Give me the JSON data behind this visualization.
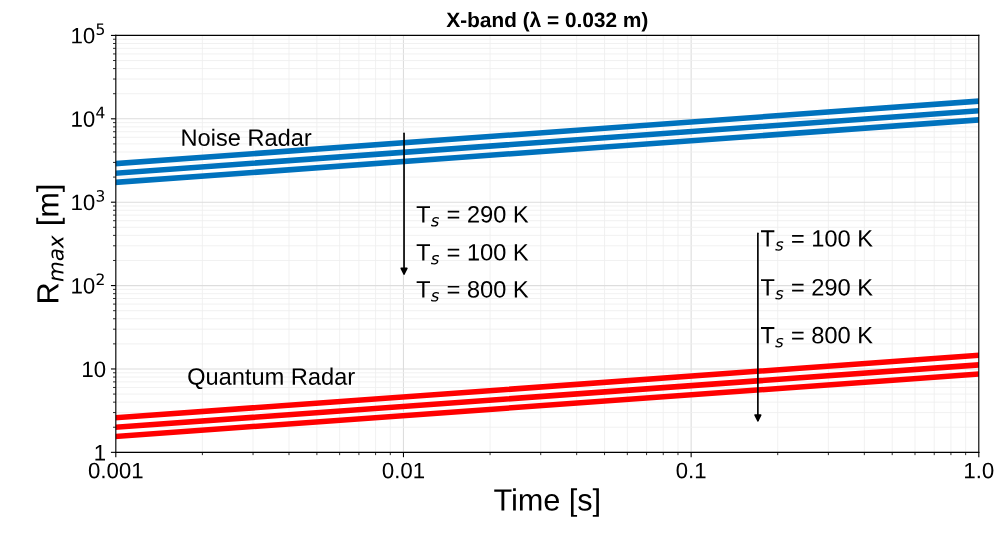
{
  "chart_data": {
    "type": "line",
    "title": "X-band (λ = 0.032 m)",
    "xlabel": "Time [s]",
    "ylabel": "R$_{max}$ [m]",
    "x": [
      0.001,
      1.0
    ],
    "series": [
      {
        "color": "#0072bd",
        "values": [
          2900,
          16300
        ]
      },
      {
        "color": "#0072bd",
        "values": [
          2230,
          12500
        ]
      },
      {
        "color": "#0072bd",
        "values": [
          1730,
          9700
        ]
      },
      {
        "color": "#ff0000",
        "values": [
          2.6,
          14.6
        ]
      },
      {
        "color": "#ff0000",
        "values": [
          2.0,
          11.2
        ]
      },
      {
        "color": "#ff0000",
        "values": [
          1.55,
          8.7
        ]
      }
    ],
    "log": "xy",
    "grid": true,
    "marker": "none",
    "line_style": "solid",
    "xlim": [
      0.001,
      1.0
    ],
    "xticks": [
      0.001,
      0.01,
      0.1,
      {
        "value": 1,
        "label": "1.0"
      }
    ],
    "ylim": [
      1,
      100000
    ],
    "yticks": [
      1,
      10,
      {
        "value": 100,
        "label": "10$^{2}$"
      },
      {
        "value": 1000,
        "label": "10$^{3}$"
      },
      {
        "value": 10000,
        "label": "10$^{4}$"
      },
      {
        "value": 100000,
        "label": "10$^{5}$"
      }
    ],
    "annotations": [
      "Noise Radar",
      "Quantum Radar",
      "T$_{s}$ = 290 K",
      "T$_{s}$ = 100 K",
      "T$_{s}$ = 800 K",
      "T$_{s}$ = 100 K",
      "T$_{s}$ = 290 K",
      "T$_{s}$ = 800 K"
    ]
  }
}
